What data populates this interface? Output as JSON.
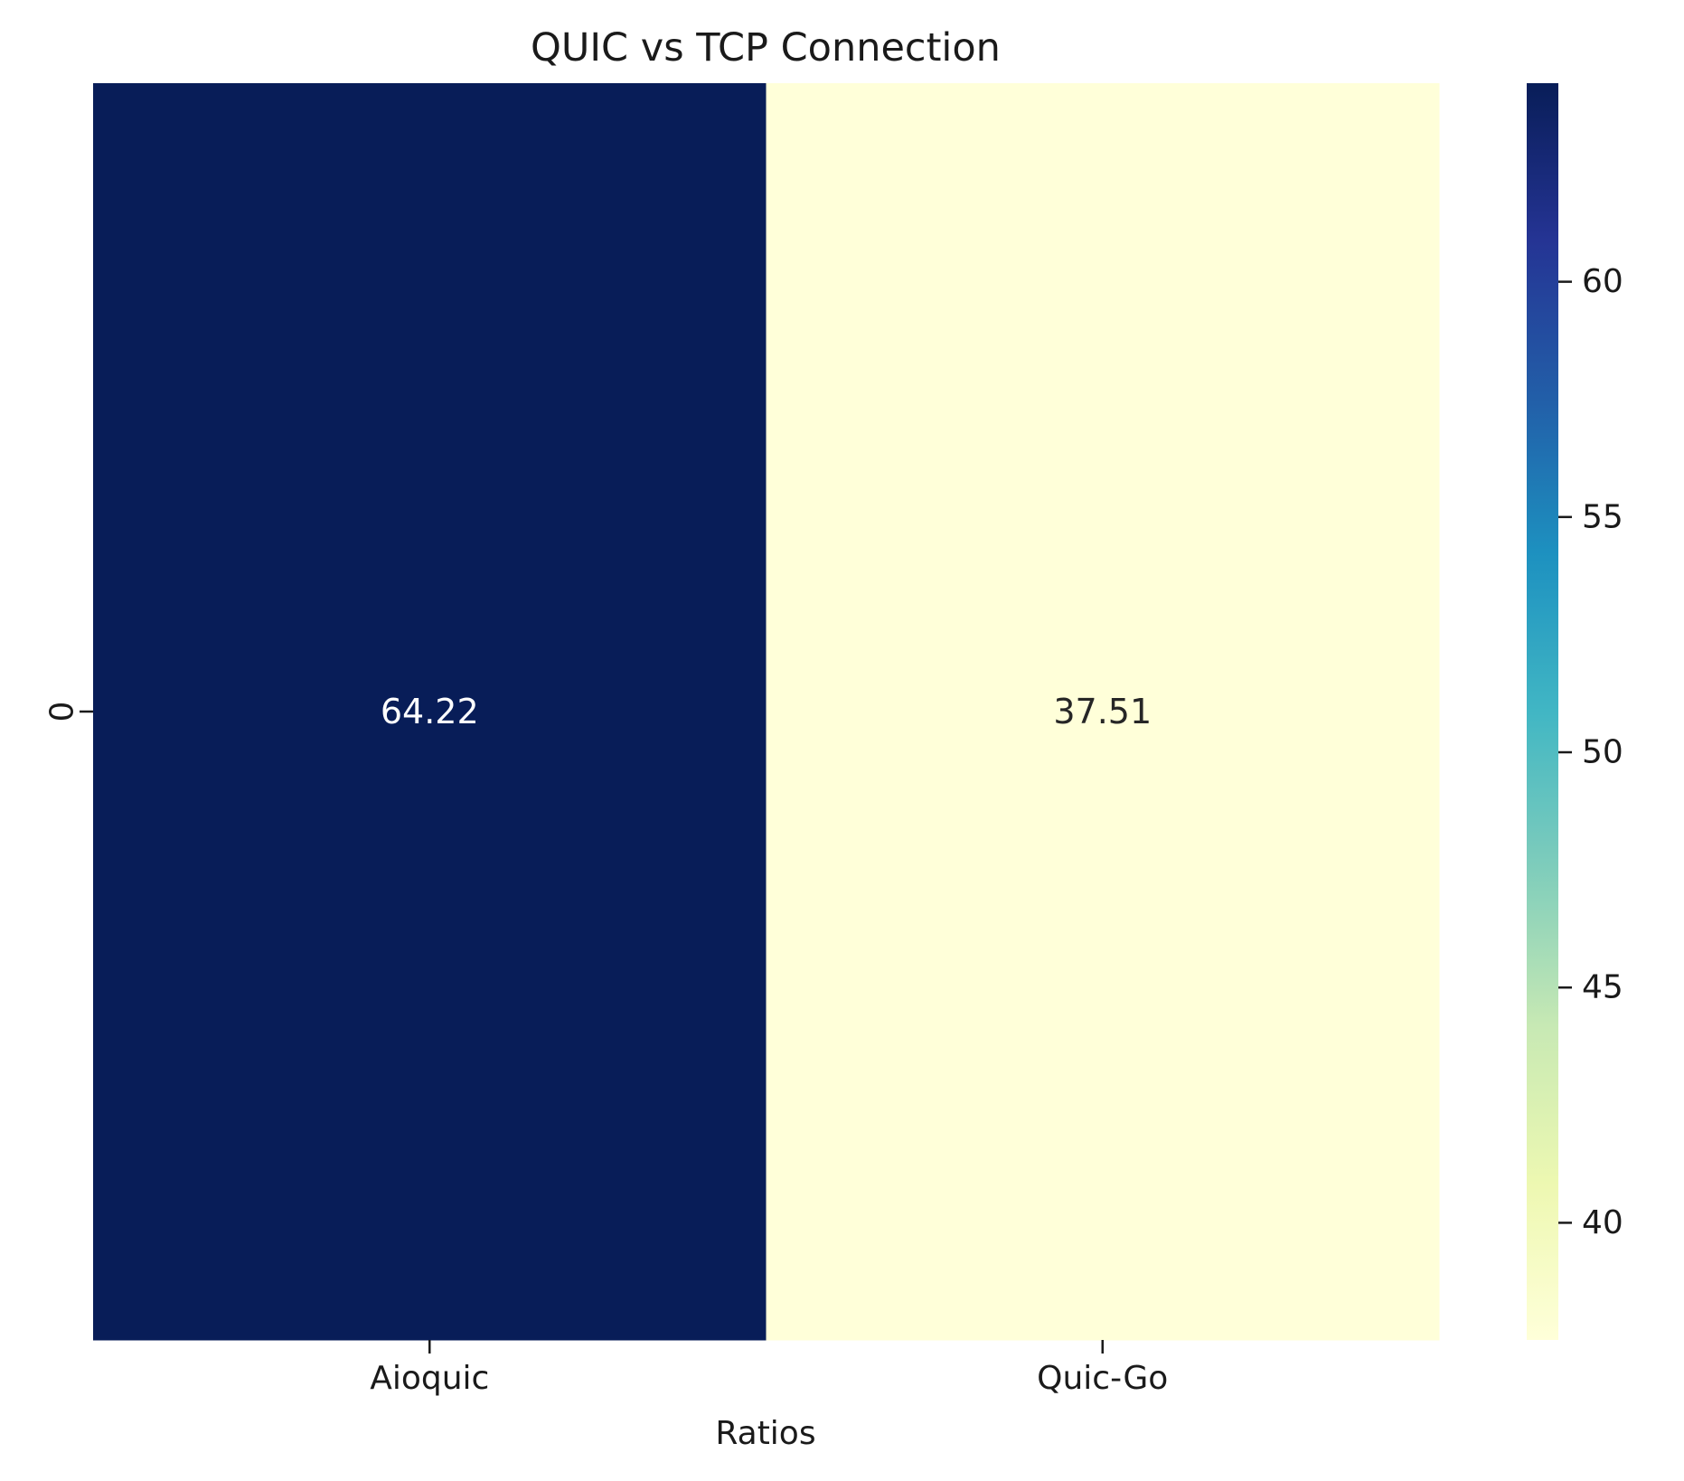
{
  "chart_data": {
    "type": "heatmap",
    "title": "QUIC vs TCP Connection",
    "xlabel": "Ratios",
    "ylabel": "",
    "x_categories": [
      "Aioquic",
      "Quic-Go"
    ],
    "y_categories": [
      "0"
    ],
    "values": [
      [
        64.22,
        37.51
      ]
    ],
    "cell_labels": [
      [
        "64.22",
        "37.51"
      ]
    ],
    "colormap": "YlGnBu",
    "colormap_stops": [
      "#ffffd9",
      "#edf8b1",
      "#c7e9b4",
      "#7fcdbb",
      "#41b6c4",
      "#1d91c0",
      "#225ea8",
      "#253494",
      "#081d58"
    ],
    "annotation_colors": {
      "dark_cell": "#ffffff",
      "light_cell": "#262626"
    },
    "colorbar": {
      "vmin": 37.51,
      "vmax": 64.22,
      "ticks": [
        40,
        45,
        50,
        55,
        60
      ],
      "tick_labels": [
        "40",
        "45",
        "50",
        "55",
        "60"
      ]
    }
  }
}
